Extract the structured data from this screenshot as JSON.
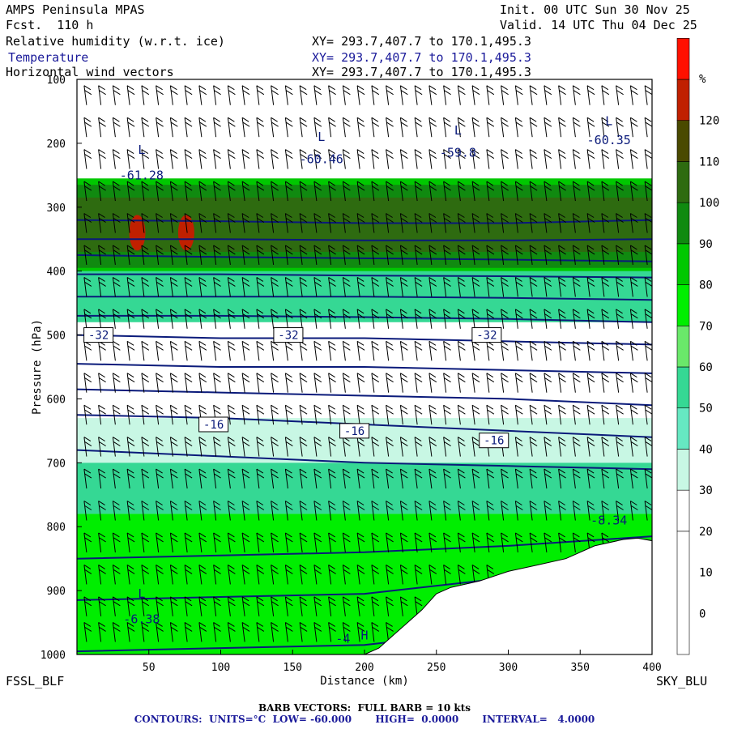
{
  "header": {
    "title": "AMPS Peninsula MPAS",
    "forecast": "Fcst.  110 h",
    "init": "Init. 00 UTC Sun 30 Nov 25",
    "valid": "Valid. 14 UTC Thu 04 Dec 25"
  },
  "fields": [
    {
      "label": "Relative humidity (w.r.t. ice)",
      "xy": "XY= 293.7,407.7 to 170.1,495.3",
      "color": "#000000"
    },
    {
      "label": "Temperature",
      "xy": "XY= 293.7,407.7 to 170.1,495.3",
      "color": "#1a1a9a"
    },
    {
      "label": "Horizontal wind vectors",
      "xy": "XY= 293.7,407.7 to 170.1,495.3",
      "color": "#000000"
    }
  ],
  "left_station": "FSSL_BLF",
  "right_station": "SKY_BLU",
  "footer": {
    "barb": "BARB VECTORS:  FULL BARB = 10 kts",
    "contours": "CONTOURS:  UNITS=°C  LOW= -60.000       HIGH=  0.0000       INTERVAL=   4.0000"
  },
  "colors": {
    "contour": "#0a1a7a",
    "terrain": "#ffffff"
  },
  "chart_data": {
    "type": "heatmap",
    "xlabel": "Distance (km)",
    "ylabel": "Pressure (hPa)",
    "xlim": [
      0,
      400
    ],
    "ylim": [
      1000,
      100
    ],
    "x_ticks": [
      50,
      100,
      150,
      200,
      250,
      300,
      350,
      400
    ],
    "x_tick_labels": [
      "50",
      "100",
      "150",
      "200",
      "250",
      "300",
      "350",
      "400"
    ],
    "y_ticks": [
      100,
      200,
      300,
      400,
      500,
      600,
      700,
      800,
      900,
      1000
    ],
    "y_tick_labels": [
      "100",
      "200",
      "300",
      "400",
      "500",
      "600",
      "700",
      "800",
      "900",
      "1000"
    ],
    "colorbar": {
      "unit": "%",
      "labels": [
        "0",
        "10",
        "20",
        "30",
        "40",
        "50",
        "60",
        "70",
        "80",
        "90",
        "100",
        "110",
        "120"
      ],
      "label_values": [
        0,
        10,
        20,
        30,
        40,
        50,
        60,
        70,
        80,
        90,
        100,
        110,
        120
      ],
      "bands": [
        {
          "from": -10,
          "to": 20,
          "color": "#ffffff"
        },
        {
          "from": 20,
          "to": 30,
          "color": "#ffffff"
        },
        {
          "from": 30,
          "to": 40,
          "color": "#c8f7e4"
        },
        {
          "from": 40,
          "to": 50,
          "color": "#66e8c2"
        },
        {
          "from": 50,
          "to": 60,
          "color": "#35d894"
        },
        {
          "from": 60,
          "to": 70,
          "color": "#6ae86a"
        },
        {
          "from": 70,
          "to": 80,
          "color": "#00ee00"
        },
        {
          "from": 80,
          "to": 90,
          "color": "#00c800"
        },
        {
          "from": 90,
          "to": 100,
          "color": "#108a10"
        },
        {
          "from": 100,
          "to": 110,
          "color": "#2e6b10"
        },
        {
          "from": 110,
          "to": 120,
          "color": "#4a4a00"
        },
        {
          "from": 120,
          "to": 130,
          "color": "#c02000"
        },
        {
          "from": 130,
          "to": 140,
          "color": "#ff1000"
        }
      ]
    },
    "rh_layers": [
      {
        "p_top": 255,
        "p_bottom": 410,
        "rh": 85
      },
      {
        "p_top": 265,
        "p_bottom": 395,
        "rh": 95
      },
      {
        "p_top": 285,
        "p_bottom": 370,
        "rh": 105
      },
      {
        "p_top": 400,
        "p_bottom": 480,
        "rh": 55
      },
      {
        "p_top": 630,
        "p_bottom": 700,
        "rh": 35
      },
      {
        "p_top": 700,
        "p_bottom": 780,
        "rh": 55
      },
      {
        "p_top": 780,
        "p_bottom": 1000,
        "rh": 75
      }
    ],
    "rh_maxima": [
      {
        "x": 42,
        "p": 340,
        "rh": 125
      },
      {
        "x": 76,
        "p": 340,
        "rh": 125
      }
    ],
    "temperature_isotherms": [
      {
        "x": [
          0,
          100,
          200,
          300,
          400
        ],
        "p": [
          995,
          990,
          985,
          960,
          920
        ],
        "value": -4
      },
      {
        "x": [
          0,
          100,
          200,
          300,
          400
        ],
        "p": [
          915,
          910,
          905,
          880,
          850
        ],
        "value": -8
      },
      {
        "x": [
          0,
          100,
          200,
          300,
          400
        ],
        "p": [
          850,
          845,
          840,
          830,
          815
        ],
        "value": -12
      },
      {
        "x": [
          0,
          100,
          200,
          300,
          400
        ],
        "p": [
          680,
          690,
          700,
          705,
          710
        ],
        "value": -16
      },
      {
        "x": [
          0,
          100,
          200,
          300,
          400
        ],
        "p": [
          625,
          630,
          640,
          650,
          660
        ],
        "value": -20
      },
      {
        "x": [
          0,
          100,
          200,
          300,
          400
        ],
        "p": [
          585,
          590,
          595,
          600,
          610
        ],
        "value": -24
      },
      {
        "x": [
          0,
          100,
          200,
          300,
          400
        ],
        "p": [
          545,
          550,
          550,
          555,
          560
        ],
        "value": -28
      },
      {
        "x": [
          0,
          100,
          200,
          300,
          400
        ],
        "p": [
          500,
          505,
          505,
          510,
          515
        ],
        "value": -32
      },
      {
        "x": [
          0,
          100,
          200,
          300,
          400
        ],
        "p": [
          470,
          470,
          472,
          475,
          480
        ],
        "value": -36
      },
      {
        "x": [
          0,
          100,
          200,
          300,
          400
        ],
        "p": [
          440,
          440,
          440,
          442,
          445
        ],
        "value": -40
      },
      {
        "x": [
          0,
          100,
          200,
          300,
          400
        ],
        "p": [
          405,
          405,
          407,
          408,
          410
        ],
        "value": -44
      },
      {
        "x": [
          0,
          100,
          200,
          300,
          400
        ],
        "p": [
          375,
          378,
          380,
          382,
          385
        ],
        "value": -48
      },
      {
        "x": [
          0,
          100,
          200,
          300,
          400
        ],
        "p": [
          350,
          350,
          352,
          352,
          350
        ],
        "value": -52
      },
      {
        "x": [
          0,
          100,
          200,
          300,
          400
        ],
        "p": [
          320,
          322,
          325,
          325,
          320
        ],
        "value": -56
      }
    ],
    "contour_labels": [
      {
        "x": 15,
        "p": 500,
        "text": "-32"
      },
      {
        "x": 147,
        "p": 500,
        "text": "-32"
      },
      {
        "x": 285,
        "p": 500,
        "text": "-32"
      },
      {
        "x": 95,
        "p": 640,
        "text": "-16"
      },
      {
        "x": 193,
        "p": 650,
        "text": "-16"
      },
      {
        "x": 290,
        "p": 665,
        "text": "-16"
      }
    ],
    "low_labels": [
      {
        "x": 45,
        "p": 210,
        "text": "L"
      },
      {
        "x": 45,
        "p": 250,
        "text": "-61.28"
      },
      {
        "x": 170,
        "p": 190,
        "text": "L"
      },
      {
        "x": 170,
        "p": 225,
        "text": "-60.46"
      },
      {
        "x": 265,
        "p": 180,
        "text": "L"
      },
      {
        "x": 265,
        "p": 215,
        "text": "-59.8"
      },
      {
        "x": 370,
        "p": 165,
        "text": "L"
      },
      {
        "x": 370,
        "p": 195,
        "text": "-60.35"
      },
      {
        "x": 45,
        "p": 905,
        "text": "L"
      },
      {
        "x": 45,
        "p": 945,
        "text": "-6.38"
      }
    ],
    "high_labels": [
      {
        "x": 200,
        "p": 970,
        "text": "H"
      },
      {
        "x": 185,
        "p": 975,
        "text": "-4"
      },
      {
        "x": 370,
        "p": 790,
        "text": "-8.34"
      }
    ],
    "terrain_surface": {
      "x": [
        0,
        20,
        40,
        60,
        80,
        100,
        120,
        140,
        160,
        180,
        200,
        210,
        220,
        230,
        240,
        250,
        260,
        280,
        300,
        320,
        340,
        360,
        380,
        390,
        400
      ],
      "p": [
        1000,
        1000,
        1000,
        1000,
        1000,
        1000,
        1000,
        1000,
        1000,
        1000,
        1000,
        990,
        970,
        950,
        930,
        905,
        895,
        885,
        870,
        860,
        850,
        830,
        820,
        818,
        822
      ]
    },
    "wind_barbs": {
      "columns": [
        5,
        15,
        25,
        35,
        45,
        55,
        65,
        75,
        85,
        95,
        105,
        115,
        125,
        135,
        145,
        155,
        165,
        175,
        185,
        195,
        205,
        215,
        225,
        235,
        245,
        255,
        265,
        275,
        285,
        295,
        305,
        315,
        325,
        335,
        345,
        355,
        365,
        375,
        385,
        395
      ],
      "levels": [
        125,
        175,
        225,
        275,
        325,
        375,
        425,
        475,
        525,
        575,
        625,
        675,
        725,
        775,
        825,
        875,
        925,
        965
      ],
      "full_barb_kts": 10
    }
  }
}
